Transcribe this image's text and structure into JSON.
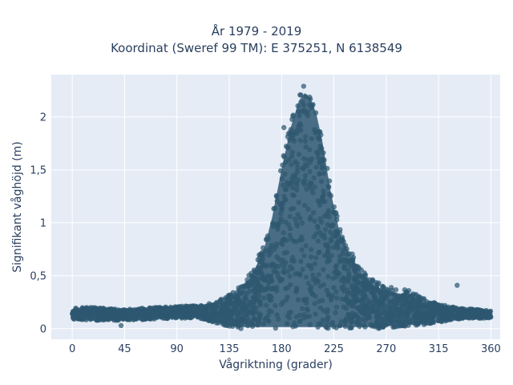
{
  "chart_data": {
    "type": "scatter",
    "title": "År 1979 - 2019",
    "subtitle": "Koordinat (Sweref 99 TM): E 375251, N 6138549",
    "xlabel": "Vågriktning (grader)",
    "ylabel": "Signifikant våghöjd (m)",
    "xlim": [
      -18,
      368
    ],
    "ylim": [
      -0.1,
      2.4
    ],
    "xticks": [
      0,
      45,
      90,
      135,
      180,
      225,
      270,
      315,
      360
    ],
    "xtick_labels": [
      "0",
      "45",
      "90",
      "135",
      "180",
      "225",
      "270",
      "315",
      "360"
    ],
    "yticks": [
      0,
      0.5,
      1,
      1.5,
      2
    ],
    "ytick_labels": [
      "0",
      "0,5",
      "1",
      "1,5",
      "2"
    ],
    "grid": true,
    "series": [
      {
        "color": "#2e5770",
        "envelope_direction_deg": [
          0,
          20,
          45,
          70,
          90,
          110,
          125,
          135,
          145,
          155,
          165,
          172,
          180,
          188,
          195,
          200,
          205,
          210,
          215,
          222,
          230,
          240,
          250,
          260,
          270,
          280,
          290,
          300,
          310,
          320,
          330,
          340,
          350,
          360
        ],
        "envelope_lower_height_m": [
          0.09,
          0.08,
          0.08,
          0.09,
          0.1,
          0.1,
          0.05,
          0.01,
          0.0,
          0.0,
          0.0,
          0.0,
          0.0,
          0.0,
          0.0,
          0.0,
          0.0,
          0.0,
          0.0,
          0.0,
          0.0,
          0.0,
          0.0,
          0.0,
          0.01,
          0.01,
          0.02,
          0.03,
          0.05,
          0.07,
          0.09,
          0.1,
          0.1,
          0.1
        ],
        "envelope_upper_height_m": [
          0.2,
          0.2,
          0.18,
          0.2,
          0.21,
          0.22,
          0.26,
          0.33,
          0.4,
          0.56,
          0.8,
          1.1,
          1.55,
          1.95,
          2.2,
          2.27,
          2.22,
          2.07,
          1.82,
          1.35,
          0.95,
          0.72,
          0.55,
          0.45,
          0.4,
          0.38,
          0.36,
          0.3,
          0.25,
          0.22,
          0.2,
          0.19,
          0.18,
          0.17
        ],
        "outliers": [
          [
            331,
            0.41
          ],
          [
            42,
            0.03
          ],
          [
            182,
            1.9
          ],
          [
            199,
            2.29
          ]
        ]
      }
    ]
  }
}
